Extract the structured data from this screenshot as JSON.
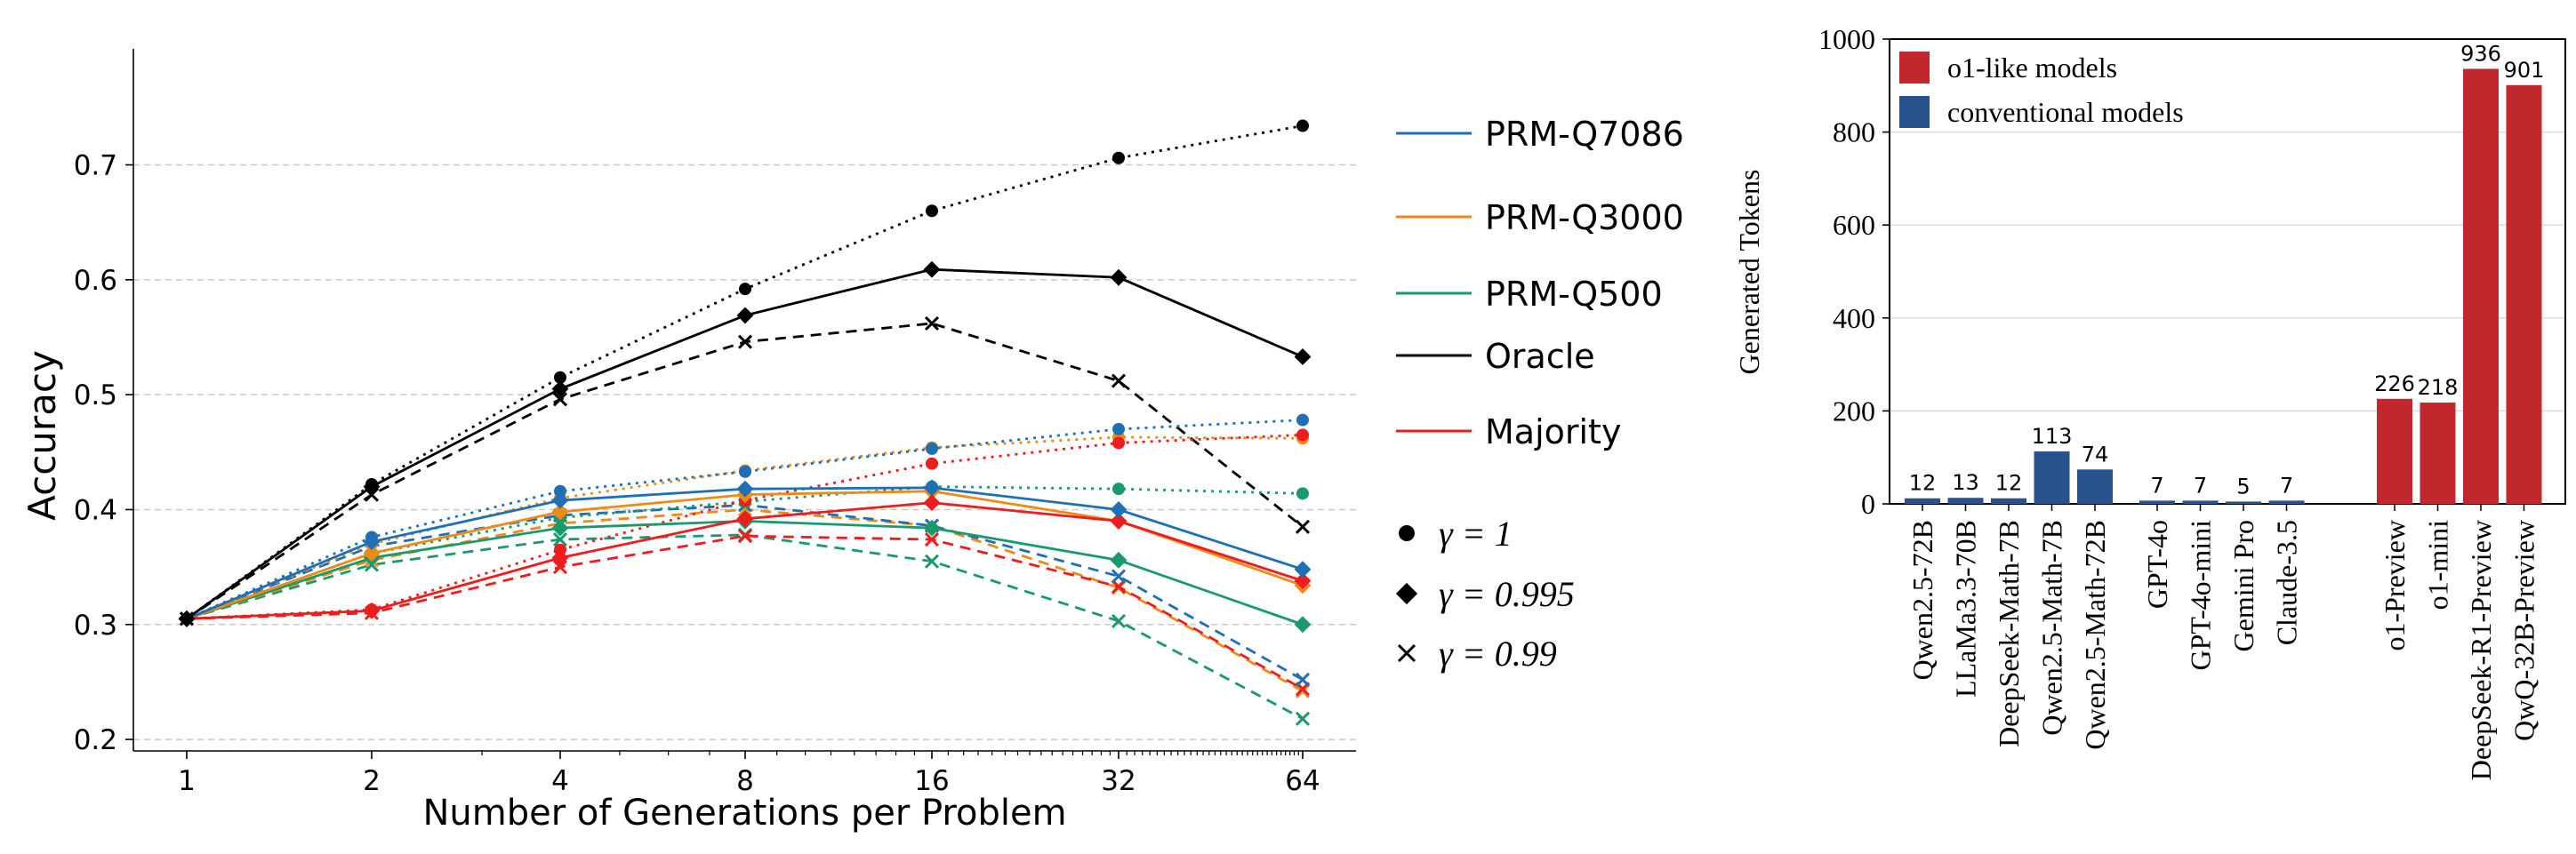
{
  "chart_data": [
    {
      "type": "line",
      "xlabel": "Number of Generations per Problem",
      "ylabel": "Accuracy",
      "x_scale": "log2",
      "x": [
        1,
        2,
        4,
        8,
        16,
        32,
        64
      ],
      "x_tick_labels": [
        "1",
        "2",
        "4",
        "8",
        "16",
        "32",
        "64"
      ],
      "ylim": [
        0.19,
        0.77
      ],
      "y_ticks": [
        0.2,
        0.3,
        0.4,
        0.5,
        0.6,
        0.7
      ],
      "y_tick_labels": [
        "0.2",
        "0.3",
        "0.4",
        "0.5",
        "0.6",
        "0.7"
      ],
      "grid": "horizontal dashed",
      "legend_placement": "right",
      "legend_models": [
        {
          "label": "PRM-Q7086",
          "color": "#1f6fb4"
        },
        {
          "label": "PRM-Q3000",
          "color": "#ef8a17"
        },
        {
          "label": "PRM-Q500",
          "color": "#1a9a6c"
        },
        {
          "label": "Oracle",
          "color": "#000000"
        },
        {
          "label": "Majority",
          "color": "#ee1c1c"
        }
      ],
      "legend_gamma": [
        {
          "marker": "circle",
          "label": "γ = 1",
          "linestyle": "dotted"
        },
        {
          "marker": "diamond",
          "label": "γ = 0.995",
          "linestyle": "solid"
        },
        {
          "marker": "x",
          "label": "γ = 0.99",
          "linestyle": "dashed"
        }
      ],
      "series": [
        {
          "model": "Oracle",
          "gamma": "1",
          "values": [
            0.305,
            0.422,
            0.515,
            0.592,
            0.66,
            0.706,
            0.734
          ]
        },
        {
          "model": "Oracle",
          "gamma": "0.995",
          "values": [
            0.305,
            0.42,
            0.505,
            0.569,
            0.609,
            0.602,
            0.533
          ]
        },
        {
          "model": "Oracle",
          "gamma": "0.99",
          "values": [
            0.305,
            0.413,
            0.496,
            0.546,
            0.562,
            0.512,
            0.385
          ]
        },
        {
          "model": "PRM-Q7086",
          "gamma": "1",
          "values": [
            0.305,
            0.376,
            0.416,
            0.433,
            0.453,
            0.47,
            0.478
          ]
        },
        {
          "model": "PRM-Q7086",
          "gamma": "0.995",
          "values": [
            0.305,
            0.372,
            0.408,
            0.418,
            0.419,
            0.4,
            0.348
          ]
        },
        {
          "model": "PRM-Q7086",
          "gamma": "0.99",
          "values": [
            0.305,
            0.368,
            0.395,
            0.404,
            0.386,
            0.342,
            0.252
          ]
        },
        {
          "model": "PRM-Q3000",
          "gamma": "1",
          "values": [
            0.305,
            0.37,
            0.41,
            0.434,
            0.454,
            0.463,
            0.462
          ]
        },
        {
          "model": "PRM-Q3000",
          "gamma": "0.995",
          "values": [
            0.305,
            0.362,
            0.398,
            0.413,
            0.416,
            0.39,
            0.334
          ]
        },
        {
          "model": "PRM-Q3000",
          "gamma": "0.99",
          "values": [
            0.305,
            0.356,
            0.388,
            0.4,
            0.386,
            0.332,
            0.242
          ]
        },
        {
          "model": "PRM-Q500",
          "gamma": "1",
          "values": [
            0.305,
            0.362,
            0.393,
            0.407,
            0.42,
            0.418,
            0.414
          ]
        },
        {
          "model": "PRM-Q500",
          "gamma": "0.995",
          "values": [
            0.305,
            0.358,
            0.384,
            0.39,
            0.384,
            0.356,
            0.3
          ]
        },
        {
          "model": "PRM-Q500",
          "gamma": "0.99",
          "values": [
            0.305,
            0.352,
            0.374,
            0.378,
            0.355,
            0.303,
            0.218
          ]
        },
        {
          "model": "Majority",
          "gamma": "1",
          "values": [
            0.305,
            0.313,
            0.365,
            0.408,
            0.44,
            0.458,
            0.465
          ]
        },
        {
          "model": "Majority",
          "gamma": "0.995",
          "values": [
            0.305,
            0.312,
            0.358,
            0.392,
            0.406,
            0.39,
            0.338
          ]
        },
        {
          "model": "Majority",
          "gamma": "0.99",
          "values": [
            0.305,
            0.31,
            0.35,
            0.377,
            0.374,
            0.333,
            0.244
          ]
        }
      ]
    },
    {
      "type": "bar",
      "ylabel": "Generated Tokens",
      "ylim": [
        0,
        1000
      ],
      "y_ticks": [
        0,
        200,
        400,
        600,
        800,
        1000
      ],
      "y_tick_labels": [
        "0",
        "200",
        "400",
        "600",
        "800",
        "1000"
      ],
      "grid": "horizontal",
      "legend_placement": "top-left",
      "legend": [
        {
          "label": "o1-like models",
          "color": "#c0282e"
        },
        {
          "label": "conventional models",
          "color": "#28528c"
        }
      ],
      "groups": [
        {
          "bars": [
            {
              "label": "Qwen2.5-72B",
              "value": 12,
              "kind": "conventional"
            },
            {
              "label": "LLaMa3.3-70B",
              "value": 13,
              "kind": "conventional"
            },
            {
              "label": "DeepSeek-Math-7B",
              "value": 12,
              "kind": "conventional"
            },
            {
              "label": "Qwen2.5-Math-7B",
              "value": 113,
              "kind": "conventional"
            },
            {
              "label": "Qwen2.5-Math-72B",
              "value": 74,
              "kind": "conventional"
            }
          ]
        },
        {
          "bars": [
            {
              "label": "GPT-4o",
              "value": 7,
              "kind": "conventional"
            },
            {
              "label": "GPT-4o-mini",
              "value": 7,
              "kind": "conventional"
            },
            {
              "label": "Gemini Pro",
              "value": 5,
              "kind": "conventional"
            },
            {
              "label": "Claude-3.5",
              "value": 7,
              "kind": "conventional"
            }
          ]
        },
        {
          "bars": [
            {
              "label": "o1-Preview",
              "value": 226,
              "kind": "o1-like"
            },
            {
              "label": "o1-mini",
              "value": 218,
              "kind": "o1-like"
            },
            {
              "label": "DeepSeek-R1-Preview",
              "value": 936,
              "kind": "o1-like"
            },
            {
              "label": "QwQ-32B-Preview",
              "value": 901,
              "kind": "o1-like"
            }
          ]
        }
      ]
    }
  ]
}
